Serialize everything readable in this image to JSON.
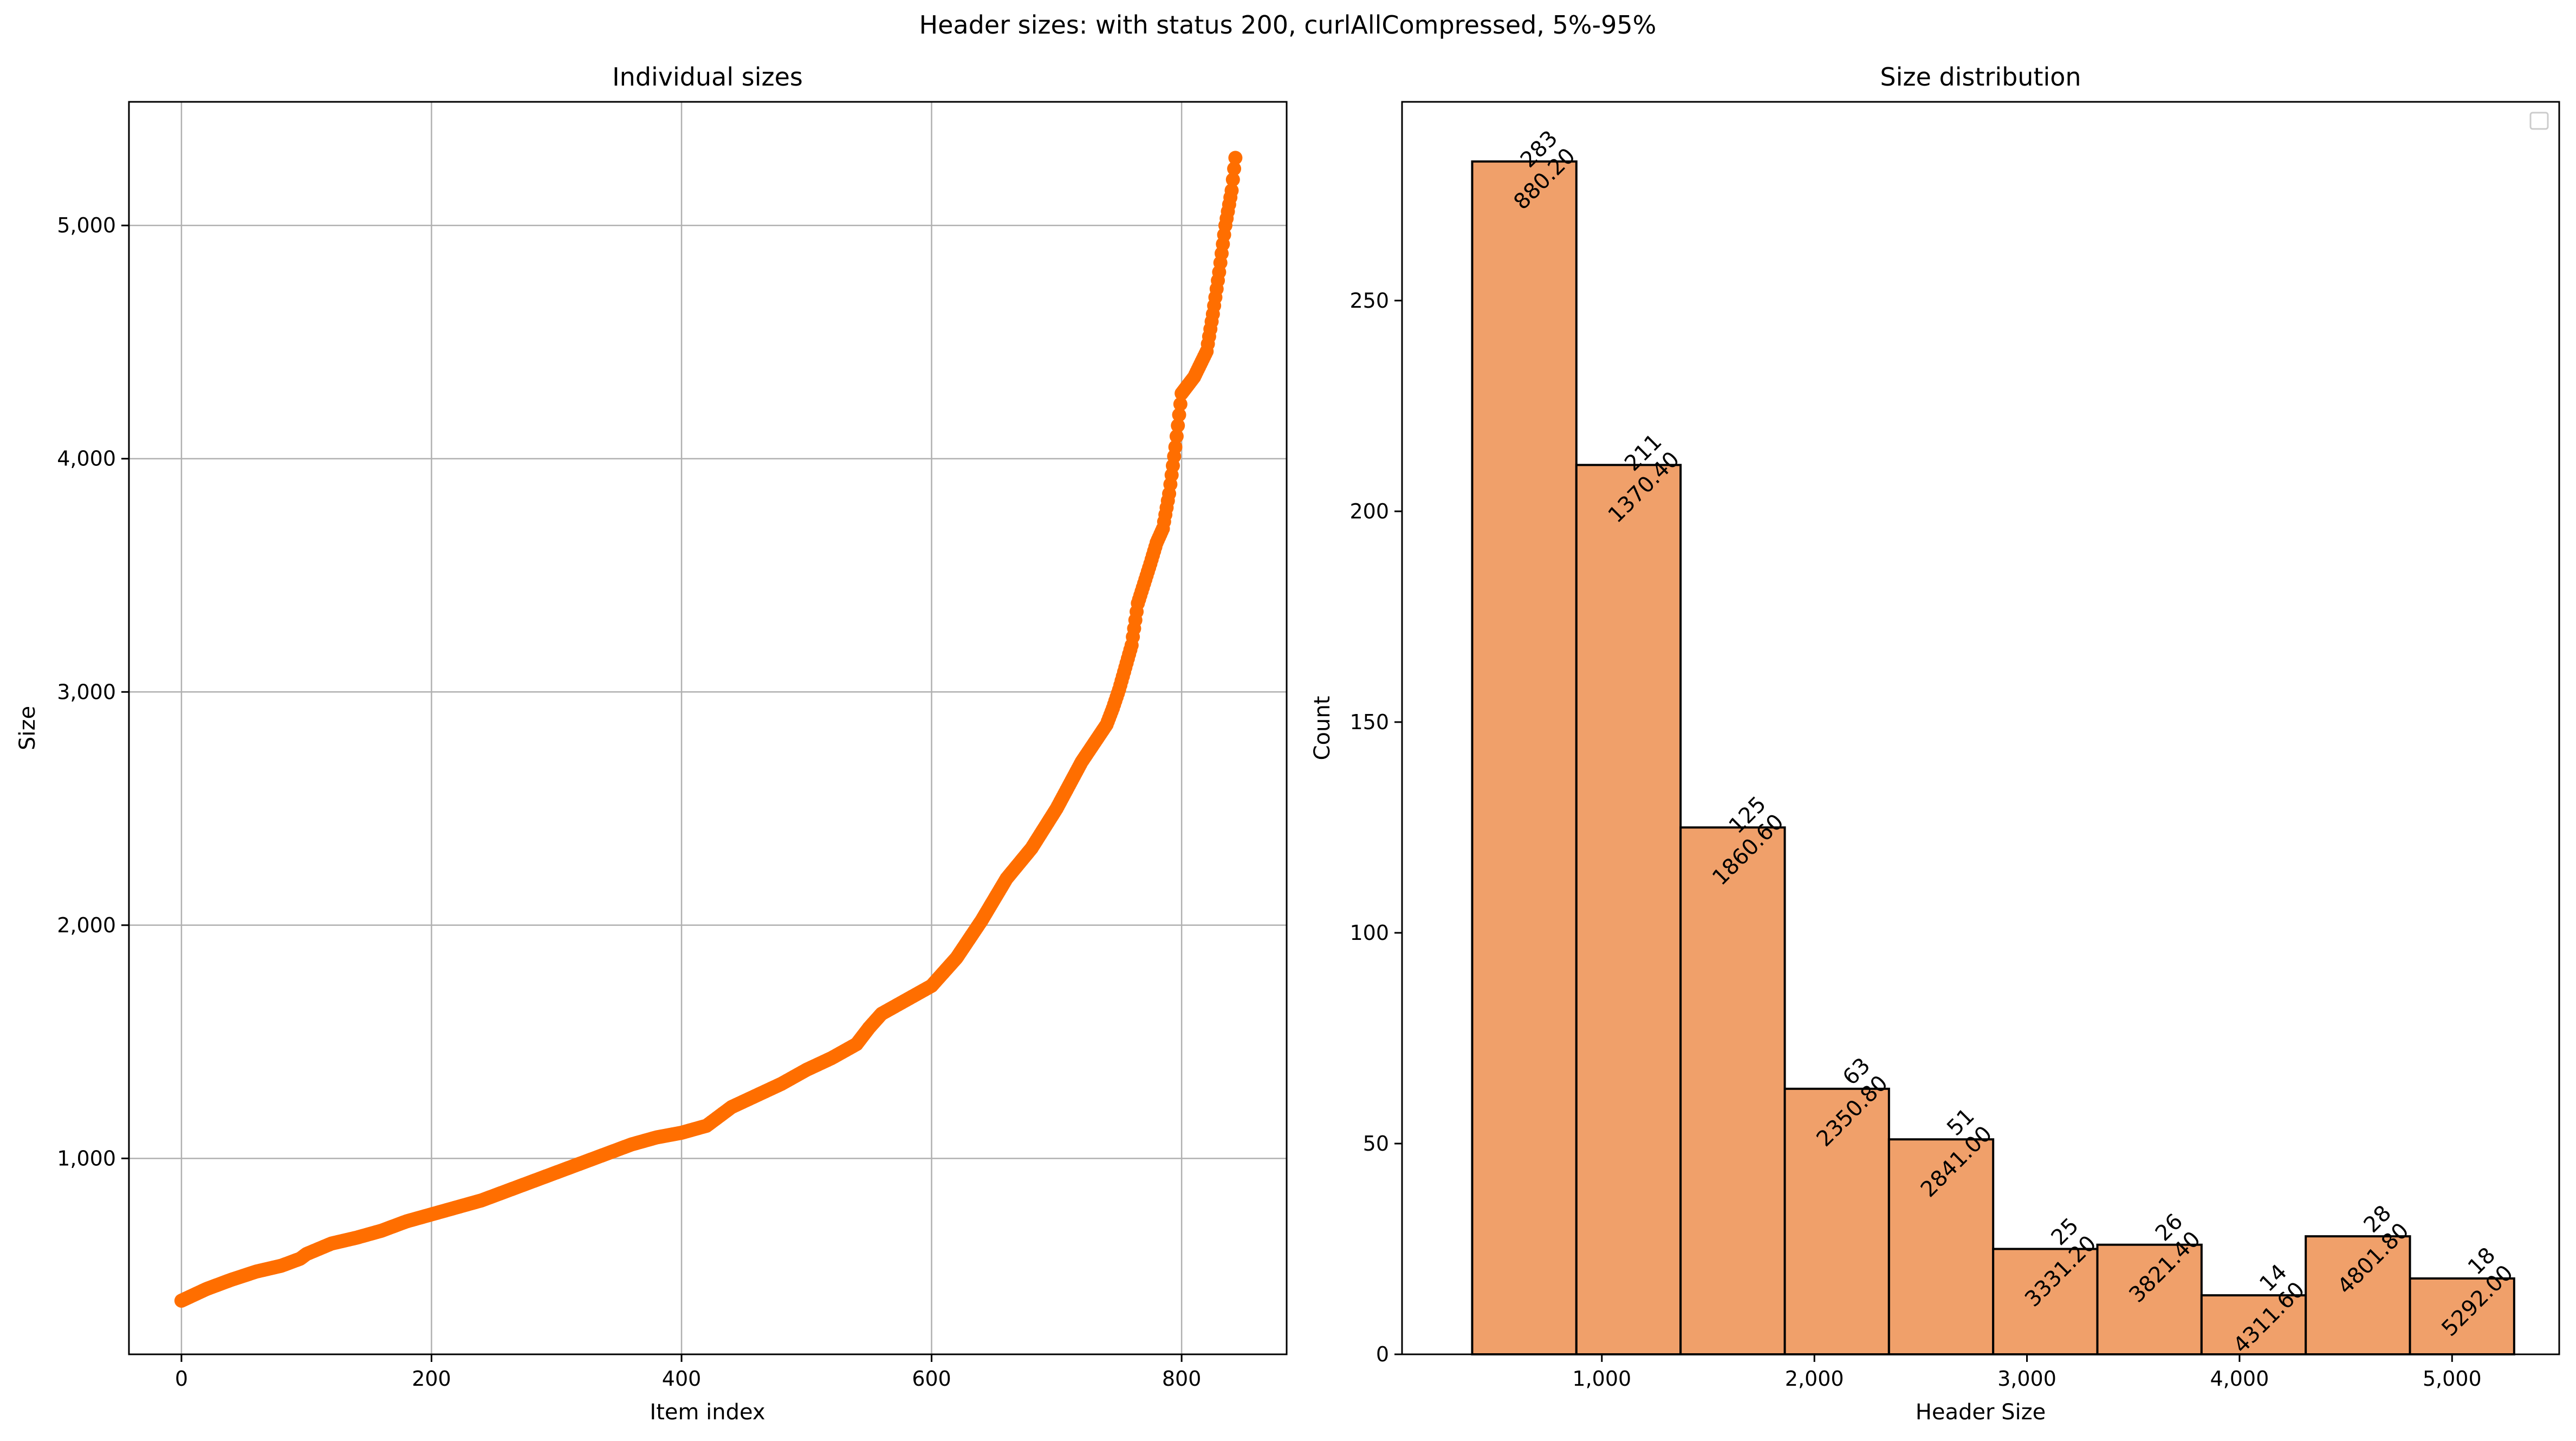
{
  "suptitle": "Header sizes: with status 200, curlAllCompressed, 5%-95%",
  "chart_data": [
    {
      "type": "scatter",
      "title": "Individual sizes",
      "xlabel": "Item index",
      "ylabel": "Size",
      "xlim": [
        -42,
        884
      ],
      "ylim": [
        160,
        5530
      ],
      "grid": true,
      "color": "#ff6e00",
      "x_ticks": [
        0,
        200,
        400,
        600,
        800
      ],
      "y_ticks": [
        1000,
        2000,
        3000,
        4000,
        5000
      ],
      "x_tick_labels": [
        "0",
        "200",
        "400",
        "600",
        "800"
      ],
      "y_tick_labels": [
        "1,000",
        "2,000",
        "3,000",
        "4,000",
        "5,000"
      ],
      "series": [
        {
          "x": [
            0,
            20,
            40,
            60,
            80,
            95,
            100,
            120,
            140,
            160,
            170,
            180,
            200,
            220,
            240,
            260,
            280,
            300,
            320,
            340,
            360,
            380,
            400,
            420,
            430,
            440,
            460,
            480,
            500,
            520,
            540,
            550,
            560,
            580,
            600,
            620,
            640,
            660,
            680,
            700,
            720,
            740,
            745,
            750,
            760,
            765,
            775,
            780,
            785,
            790,
            795,
            800,
            810,
            820,
            825,
            830,
            835,
            840,
            843
          ],
          "y": [
            390,
            440,
            480,
            515,
            540,
            570,
            590,
            635,
            660,
            690,
            710,
            730,
            760,
            790,
            820,
            860,
            900,
            940,
            980,
            1020,
            1060,
            1090,
            1110,
            1140,
            1180,
            1220,
            1270,
            1320,
            1380,
            1430,
            1490,
            1560,
            1620,
            1680,
            1740,
            1860,
            2020,
            2200,
            2330,
            2500,
            2700,
            2860,
            2930,
            3010,
            3200,
            3380,
            3550,
            3640,
            3700,
            3850,
            4050,
            4280,
            4350,
            4460,
            4620,
            4800,
            5000,
            5150,
            5290
          ]
        }
      ]
    },
    {
      "type": "bar",
      "title": "Size distribution",
      "xlabel": "Header Size",
      "ylabel": "Count",
      "xlim": [
        60,
        5504
      ],
      "ylim": [
        0,
        297.15
      ],
      "grid": false,
      "legend": "top-right (empty)",
      "color": "#f0a06a",
      "edge_color": "#000000",
      "bin_edges": [
        390,
        880.2,
        1370.4,
        1860.6,
        2350.8,
        2841.0,
        3331.2,
        3821.4,
        4311.6,
        4801.8,
        5292.0
      ],
      "values": [
        283,
        211,
        125,
        63,
        51,
        25,
        26,
        14,
        28,
        18
      ],
      "bar_labels": [
        "283\n880.20",
        "211\n1370.40",
        "125\n1860.60",
        "63\n2350.80",
        "51\n2841.00",
        "25\n3331.20",
        "26\n3821.40",
        "14\n4311.60",
        "28\n4801.80",
        "18\n5292.00"
      ],
      "x_ticks": [
        1000,
        2000,
        3000,
        4000,
        5000
      ],
      "y_ticks": [
        0,
        50,
        100,
        150,
        200,
        250
      ],
      "x_tick_labels": [
        "1,000",
        "2,000",
        "3,000",
        "4,000",
        "5,000"
      ],
      "y_tick_labels": [
        "0",
        "50",
        "100",
        "150",
        "200",
        "250"
      ]
    }
  ]
}
